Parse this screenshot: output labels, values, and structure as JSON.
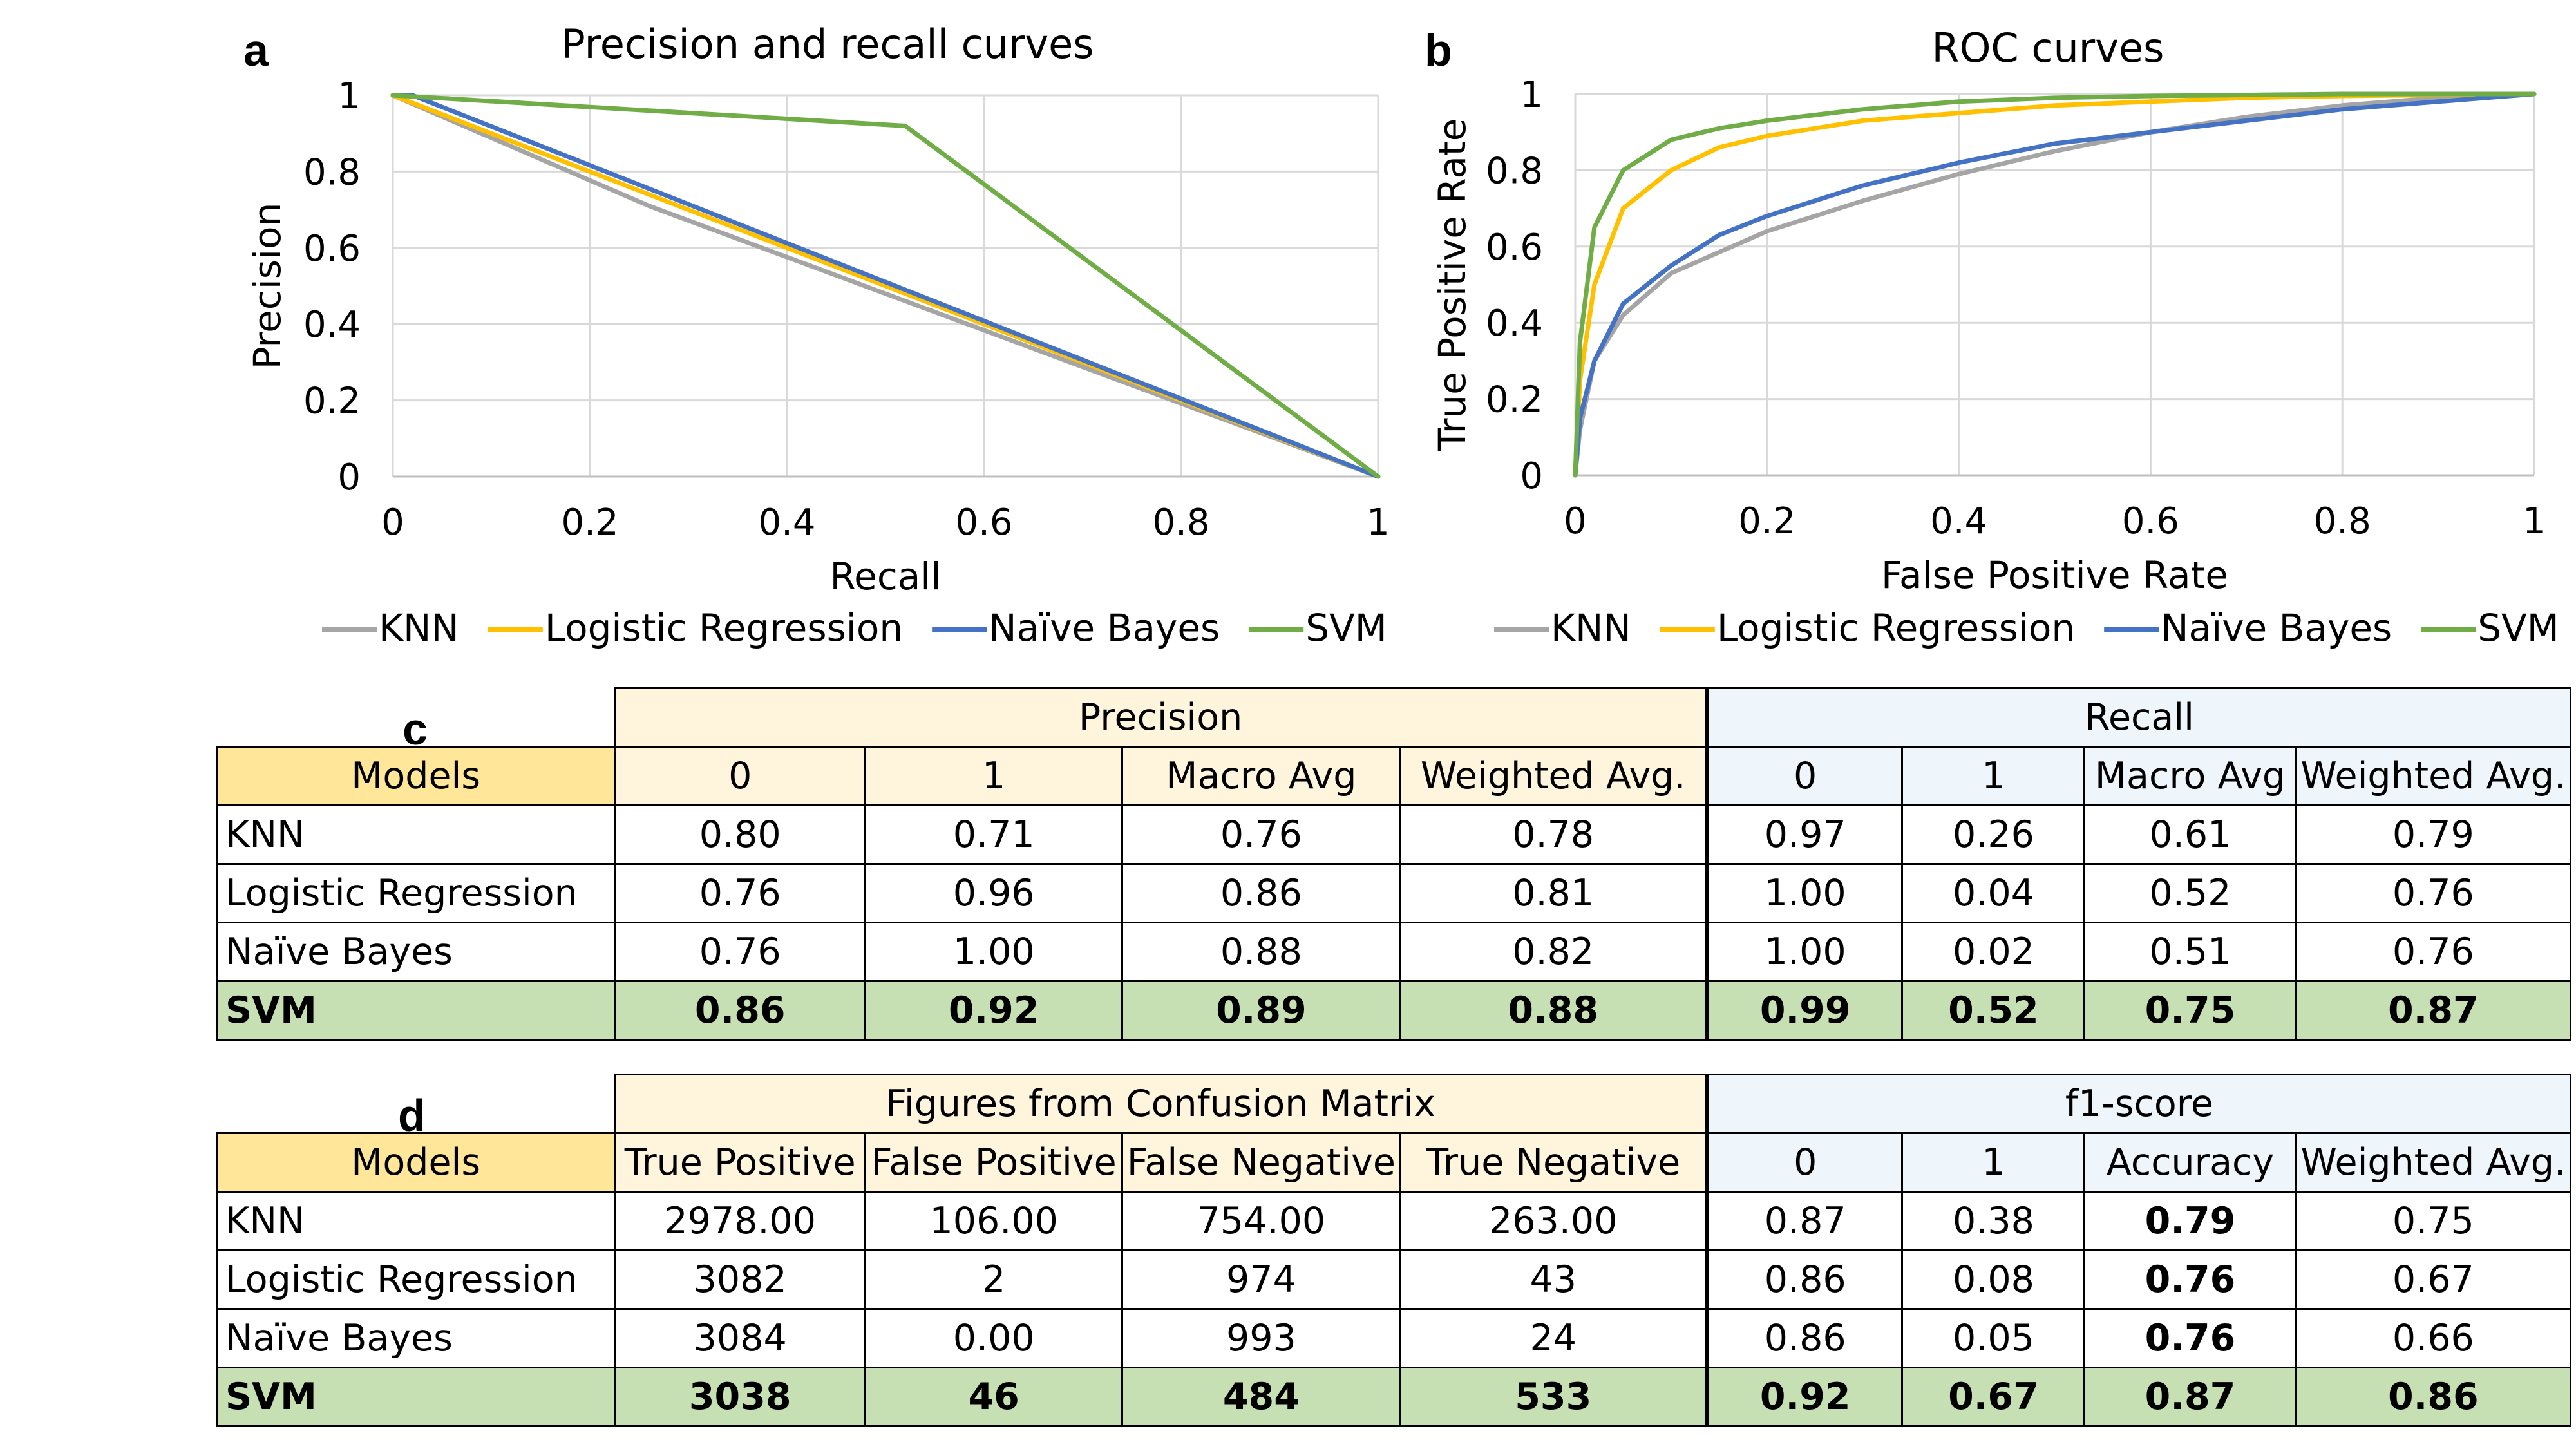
{
  "panels": {
    "a": "a",
    "b": "b",
    "c": "c",
    "d": "d"
  },
  "colors": {
    "KNN": "#a5a5a5",
    "Logistic Regression": "#ffc000",
    "Naïve Bayes": "#4472c4",
    "SVM": "#70ad47"
  },
  "chart_data": [
    {
      "type": "line",
      "title": "Precision and recall curves",
      "xlabel": "Recall",
      "ylabel": "Precision",
      "xlim": [
        0,
        1
      ],
      "ylim": [
        0,
        1
      ],
      "xticks": [
        "0",
        "0.2",
        "0.4",
        "0.6",
        "0.8",
        "1"
      ],
      "yticks": [
        "0",
        "0.2",
        "0.4",
        "0.6",
        "0.8",
        "1"
      ],
      "grid": true,
      "legend": "bottom",
      "series": [
        {
          "name": "KNN",
          "x": [
            0,
            0.26,
            1
          ],
          "y": [
            1,
            0.71,
            0
          ]
        },
        {
          "name": "Logistic Regression",
          "x": [
            0,
            0.04,
            1
          ],
          "y": [
            1,
            0.96,
            0
          ]
        },
        {
          "name": "Naïve Bayes",
          "x": [
            0,
            0.02,
            1
          ],
          "y": [
            1,
            1.0,
            0
          ]
        },
        {
          "name": "SVM",
          "x": [
            0,
            0.52,
            1
          ],
          "y": [
            1,
            0.92,
            0
          ]
        }
      ]
    },
    {
      "type": "line",
      "title": "ROC curves",
      "xlabel": "False Positive Rate",
      "ylabel": "True Positive Rate",
      "xlim": [
        0,
        1
      ],
      "ylim": [
        0,
        1
      ],
      "xticks": [
        "0",
        "0.2",
        "0.4",
        "0.6",
        "0.8",
        "1"
      ],
      "yticks": [
        "0",
        "0.2",
        "0.4",
        "0.6",
        "0.8",
        "1"
      ],
      "grid": true,
      "legend": "bottom",
      "series": [
        {
          "name": "KNN",
          "x": [
            0,
            0.005,
            0.02,
            0.05,
            0.1,
            0.2,
            0.3,
            0.4,
            0.5,
            0.6,
            0.7,
            0.8,
            0.9,
            1
          ],
          "y": [
            0,
            0.12,
            0.3,
            0.42,
            0.53,
            0.64,
            0.72,
            0.79,
            0.85,
            0.9,
            0.94,
            0.97,
            0.99,
            1
          ]
        },
        {
          "name": "Logistic Regression",
          "x": [
            0,
            0.005,
            0.02,
            0.05,
            0.1,
            0.15,
            0.2,
            0.3,
            0.4,
            0.5,
            0.6,
            0.7,
            0.8,
            1
          ],
          "y": [
            0,
            0.25,
            0.5,
            0.7,
            0.8,
            0.86,
            0.89,
            0.93,
            0.95,
            0.97,
            0.98,
            0.99,
            0.995,
            1
          ]
        },
        {
          "name": "Naïve Bayes",
          "x": [
            0,
            0.005,
            0.02,
            0.05,
            0.1,
            0.15,
            0.2,
            0.3,
            0.4,
            0.5,
            0.6,
            0.7,
            0.8,
            0.9,
            1
          ],
          "y": [
            0,
            0.15,
            0.3,
            0.45,
            0.55,
            0.63,
            0.68,
            0.76,
            0.82,
            0.87,
            0.9,
            0.93,
            0.96,
            0.98,
            1
          ]
        },
        {
          "name": "SVM",
          "x": [
            0,
            0.005,
            0.02,
            0.05,
            0.1,
            0.15,
            0.2,
            0.3,
            0.4,
            0.5,
            0.6,
            0.8,
            1
          ],
          "y": [
            0,
            0.35,
            0.65,
            0.8,
            0.88,
            0.91,
            0.93,
            0.96,
            0.98,
            0.99,
            0.995,
            1,
            1
          ]
        }
      ]
    }
  ],
  "table_c": {
    "group_headers": [
      "Precision",
      "Recall"
    ],
    "col_headers": [
      "Models",
      "0",
      "1",
      "Macro Avg",
      "Weighted Avg.",
      "0",
      "1",
      "Macro Avg",
      "Weighted Avg."
    ],
    "rows": [
      [
        "KNN",
        "0.80",
        "0.71",
        "0.76",
        "0.78",
        "0.97",
        "0.26",
        "0.61",
        "0.79"
      ],
      [
        "Logistic Regression",
        "0.76",
        "0.96",
        "0.86",
        "0.81",
        "1.00",
        "0.04",
        "0.52",
        "0.76"
      ],
      [
        "Naïve Bayes",
        "0.76",
        "1.00",
        "0.88",
        "0.82",
        "1.00",
        "0.02",
        "0.51",
        "0.76"
      ],
      [
        "SVM",
        "0.86",
        "0.92",
        "0.89",
        "0.88",
        "0.99",
        "0.52",
        "0.75",
        "0.87"
      ]
    ]
  },
  "table_d": {
    "group_headers": [
      "Figures from Confusion Matrix",
      "f1-score"
    ],
    "col_headers": [
      "Models",
      "True Positive",
      "False Positive",
      "False Negative",
      "True Negative",
      "0",
      "1",
      "Accuracy",
      "Weighted Avg."
    ],
    "rows": [
      [
        "KNN",
        "2978.00",
        "106.00",
        "754.00",
        "263.00",
        "0.87",
        "0.38",
        "0.79",
        "0.75"
      ],
      [
        "Logistic Regression",
        "3082",
        "2",
        "974",
        "43",
        "0.86",
        "0.08",
        "0.76",
        "0.67"
      ],
      [
        "Naïve Bayes",
        "3084",
        "0.00",
        "993",
        "24",
        "0.86",
        "0.05",
        "0.76",
        "0.66"
      ],
      [
        "SVM",
        "3038",
        "46",
        "484",
        "533",
        "0.92",
        "0.67",
        "0.87",
        "0.86"
      ]
    ]
  }
}
